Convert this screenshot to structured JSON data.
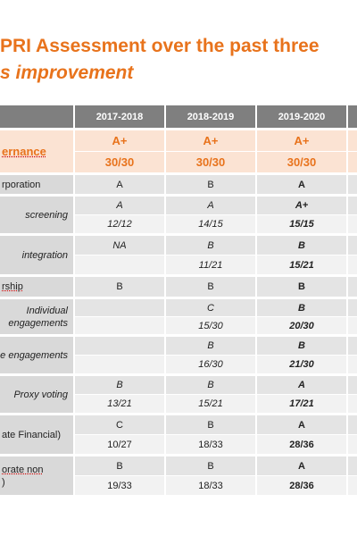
{
  "title": {
    "line1": "PRI Assessment over the past three",
    "line2": "s improvement"
  },
  "table": {
    "header": [
      "2017-2018",
      "2018-2019",
      "2019-2020"
    ],
    "rows": [
      {
        "label": [
          "ernance"
        ],
        "highlight": true,
        "cells": [
          [
            "A+",
            "A+",
            "A+"
          ],
          [
            "30/30",
            "30/30",
            "30/30"
          ]
        ]
      },
      {
        "label": [
          "rporation"
        ],
        "cells": [
          [
            "A",
            "B",
            "A"
          ]
        ]
      },
      {
        "label": [
          "screening"
        ],
        "italic": true,
        "cells": [
          [
            "A",
            "A",
            "A+"
          ],
          [
            "12/12",
            "14/15",
            "15/15"
          ]
        ]
      },
      {
        "label": [
          "integration"
        ],
        "italic": true,
        "cells": [
          [
            "NA",
            "B",
            "B"
          ],
          [
            null,
            "11/21",
            "15/21"
          ]
        ]
      },
      {
        "label": [
          "rship"
        ],
        "underline": true,
        "cells": [
          [
            "B",
            "B",
            "B"
          ]
        ]
      },
      {
        "label": [
          "Individual",
          "engagements"
        ],
        "italic": true,
        "cells": [
          [
            null,
            "C",
            "B"
          ],
          [
            null,
            "15/30",
            "20/30"
          ]
        ]
      },
      {
        "label": [
          "e engagements"
        ],
        "italic": true,
        "cells": [
          [
            null,
            "B",
            "B"
          ],
          [
            null,
            "16/30",
            "21/30"
          ]
        ]
      },
      {
        "label": [
          "Proxy voting"
        ],
        "italic": true,
        "cells": [
          [
            "B",
            "B",
            "A"
          ],
          [
            "13/21",
            "15/21",
            "17/21"
          ]
        ]
      },
      {
        "label": [
          "ate Financial)"
        ],
        "cells": [
          [
            "C",
            "B",
            "A"
          ],
          [
            "10/27",
            "18/33",
            "28/36"
          ]
        ]
      },
      {
        "label": [
          "orate non",
          ")"
        ],
        "underline": true,
        "cells": [
          [
            "B",
            "B",
            "A"
          ],
          [
            "19/33",
            "18/33",
            "28/36"
          ]
        ]
      }
    ]
  }
}
